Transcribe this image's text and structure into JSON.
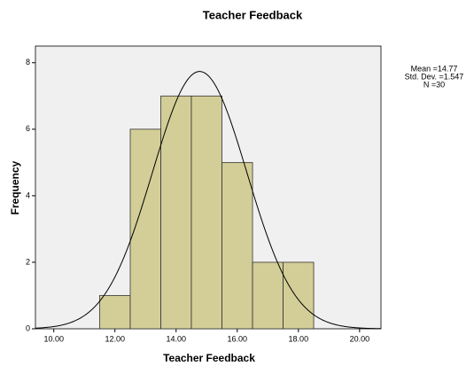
{
  "chart_data": {
    "type": "histogram",
    "title": "Teacher Feedback",
    "x_label": "Teacher Feedback",
    "y_label": "Frequency",
    "bins": [
      11.5,
      12.5,
      13.5,
      14.5,
      15.5,
      16.5,
      17.5,
      18.5
    ],
    "values": [
      1,
      6,
      7,
      7,
      5,
      2,
      2
    ],
    "color": "#d3ce97",
    "xlim": [
      9.4,
      20.7
    ],
    "ylim": [
      0,
      8.5
    ],
    "xticks": [
      {
        "value": 10,
        "label": "10.00"
      },
      {
        "value": 12,
        "label": "12.00"
      },
      {
        "value": 14,
        "label": "14.00"
      },
      {
        "value": 16,
        "label": "16.00"
      },
      {
        "value": 18,
        "label": "18.00"
      },
      {
        "value": 20,
        "label": "20.00"
      }
    ],
    "yticks": [
      0,
      2,
      4,
      6,
      8
    ],
    "stats": [
      {
        "value": 14.77,
        "label": "Mean =14.77"
      },
      {
        "value": 1.547,
        "label": "Std. Dev. =1.547"
      },
      {
        "value": 30,
        "label": "N =30"
      }
    ]
  }
}
